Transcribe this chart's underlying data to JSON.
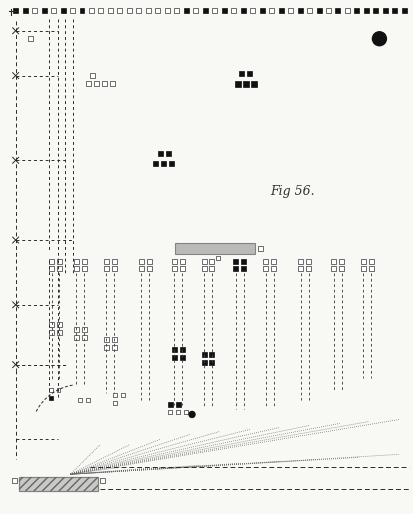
{
  "fig_label": "Fig 56.",
  "bg_color": "#f8f8f5",
  "lc": "#2a2a2a",
  "fc": "#111111",
  "sc": "#333333",
  "fig_width": 4.14,
  "fig_height": 5.14,
  "dpi": 100
}
